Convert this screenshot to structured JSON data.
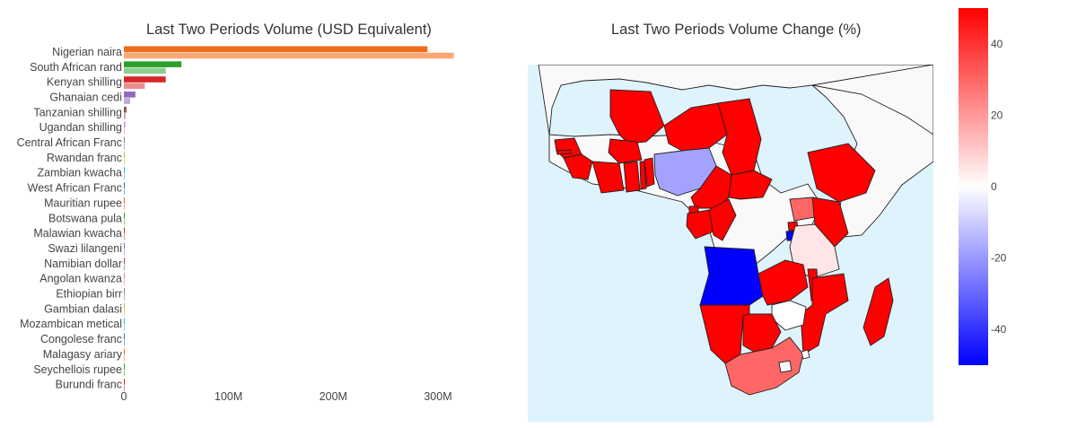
{
  "chart_data": [
    {
      "type": "bar",
      "orientation": "horizontal",
      "title": "Last Two Periods Volume (USD Equivalent)",
      "xlabel": "",
      "ylabel": "",
      "xlim": [
        0,
        330000000
      ],
      "x_ticks": [
        {
          "value": 0,
          "label": "0"
        },
        {
          "value": 100000000,
          "label": "100M"
        },
        {
          "value": 200000000,
          "label": "200M"
        },
        {
          "value": 300000000,
          "label": "300M"
        }
      ],
      "grid": false,
      "legend": "none",
      "categories": [
        "Nigerian naira",
        "South African rand",
        "Kenyan shilling",
        "Ghanaian cedi",
        "Tanzanian shilling",
        "Ugandan shilling",
        "Central African Franc",
        "Rwandan franc",
        "Zambian kwacha",
        "West African Franc",
        "Mauritian rupee",
        "Botswana pula",
        "Malawian kwacha",
        "Swazi lilangeni",
        "Namibian dollar",
        "Angolan kwanza",
        "Ethiopian birr",
        "Gambian dalasi",
        "Mozambican metical",
        "Congolese franc",
        "Malagasy ariary",
        "Seychellois rupee",
        "Burundi franc"
      ],
      "series": [
        {
          "values": [
            290000000,
            55000000,
            40000000,
            11000000,
            2500000,
            1200000,
            600000,
            500000,
            400000,
            400000,
            300000,
            200000,
            200000,
            150000,
            150000,
            100000,
            100000,
            80000,
            80000,
            60000,
            50000,
            40000,
            30000
          ],
          "colors": [
            "#ef6c1a",
            "#2ca02c",
            "#d62728",
            "#9467bd",
            "#8c564b",
            "#e377c2",
            "#7f7f7f",
            "#bcbd22",
            "#17becf",
            "#1f77b4",
            "#ef6c1a",
            "#2ca02c",
            "#d62728",
            "#9467bd",
            "#8c564b",
            "#e377c2",
            "#7f7f7f",
            "#bcbd22",
            "#17becf",
            "#1f77b4",
            "#ef6c1a",
            "#2ca02c",
            "#d62728"
          ]
        },
        {
          "values": [
            315000000,
            40000000,
            20000000,
            6000000,
            1500000,
            800000,
            500000,
            400000,
            300000,
            300000,
            200000,
            150000,
            150000,
            100000,
            100000,
            100000,
            80000,
            60000,
            60000,
            50000,
            40000,
            30000,
            20000
          ],
          "colors": [
            "#fba876",
            "#8ccf8c",
            "#eb8d8e",
            "#c2a8d9",
            "#bd9e98",
            "#f0b5de",
            "#b7b7b7",
            "#d9da83",
            "#87dde6",
            "#86b8dc",
            "#fba876",
            "#8ccf8c",
            "#eb8d8e",
            "#c2a8d9",
            "#bd9e98",
            "#f0b5de",
            "#b7b7b7",
            "#d9da83",
            "#87dde6",
            "#86b8dc",
            "#fba876",
            "#8ccf8c",
            "#eb8d8e"
          ]
        }
      ]
    },
    {
      "type": "choropleth",
      "title": "Last Two Periods Volume Change (%)",
      "colorscale": [
        "#0000ff",
        "#ffffff",
        "#ff0000"
      ],
      "zlim": [
        -50,
        50
      ],
      "colorbar_ticks": [
        40,
        20,
        0,
        -20,
        -40
      ],
      "colorbar_title": "",
      "ocean_color": "#dff3fd",
      "land_color": "#f9f9f9",
      "regions": [
        {
          "name": "Nigeria",
          "value": -18
        },
        {
          "name": "South Africa",
          "value": 30
        },
        {
          "name": "Kenya",
          "value": 50
        },
        {
          "name": "Tanzania",
          "value": 5
        },
        {
          "name": "Uganda",
          "value": 30
        },
        {
          "name": "Rwanda",
          "value": 50
        },
        {
          "name": "Burundi",
          "value": -50
        },
        {
          "name": "Angola",
          "value": -50
        },
        {
          "name": "Zambia",
          "value": 50
        },
        {
          "name": "Malawi",
          "value": 50
        },
        {
          "name": "Mozambique",
          "value": 50
        },
        {
          "name": "Zimbabwe",
          "value": 0
        },
        {
          "name": "Botswana",
          "value": 50
        },
        {
          "name": "Namibia",
          "value": 50
        },
        {
          "name": "Madagascar",
          "value": 50
        },
        {
          "name": "Ethiopia",
          "value": 50
        },
        {
          "name": "Mali",
          "value": 50
        },
        {
          "name": "Niger",
          "value": 50
        },
        {
          "name": "Chad",
          "value": 50
        },
        {
          "name": "Senegal",
          "value": 50
        },
        {
          "name": "Ghana",
          "value": 50
        },
        {
          "name": "Cameroon",
          "value": 50
        },
        {
          "name": "Gabon",
          "value": 50
        },
        {
          "name": "Congo",
          "value": 50
        },
        {
          "name": "Central African Republic",
          "value": 50
        },
        {
          "name": "Burkina Faso",
          "value": 50
        },
        {
          "name": "Guinea",
          "value": 50
        },
        {
          "name": "Ivory Coast",
          "value": 50
        },
        {
          "name": "Benin",
          "value": 50
        },
        {
          "name": "Togo",
          "value": 50
        },
        {
          "name": "Equatorial Guinea",
          "value": 50
        },
        {
          "name": "Gambia",
          "value": 50
        },
        {
          "name": "Eswatini",
          "value": 0
        }
      ]
    }
  ]
}
